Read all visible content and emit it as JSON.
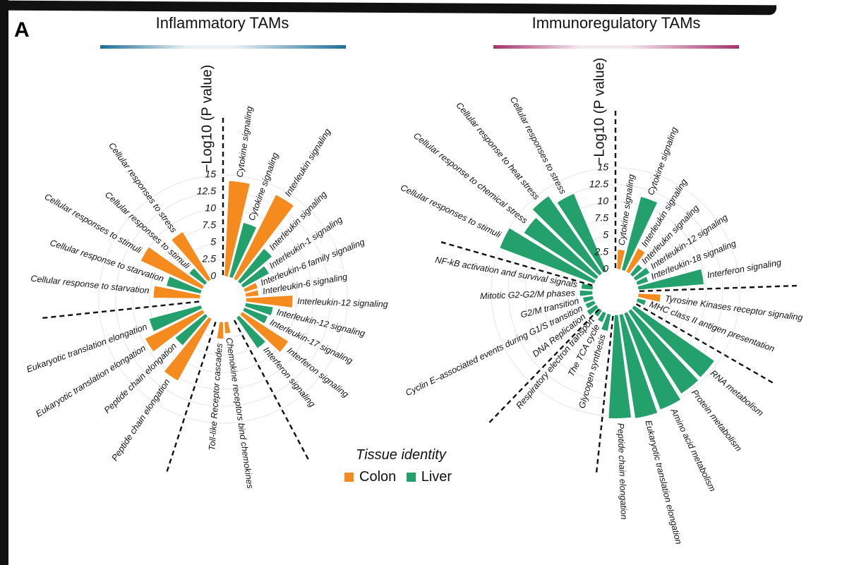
{
  "figure": {
    "panel_letter": "A",
    "colors": {
      "Colon": "#f58a1f",
      "Liver": "#23a06c",
      "left_bar": "#1f6e96",
      "right_bar": "#a5326b",
      "grid": "#e6e6e6"
    }
  },
  "legend": {
    "title": "Tissue identity",
    "items": [
      {
        "name": "Colon",
        "color": "#f58a1f"
      },
      {
        "name": "Liver",
        "color": "#23a06c"
      }
    ]
  },
  "chart_data": [
    {
      "type": "bar",
      "subtype": "circular",
      "title": "Inflammatory TAMs",
      "ylabel": "−Log10 (P value)",
      "ylim": [
        0,
        15
      ],
      "yticks": [
        "0",
        "2.5",
        "5",
        "7.5",
        "10",
        "12.5",
        "15"
      ],
      "grid": true,
      "series": [
        {
          "name": "Colon",
          "color": "#f58a1f"
        },
        {
          "name": "Liver",
          "color": "#23a06c"
        }
      ],
      "bars": [
        {
          "label": "Cytokine signaling",
          "tissue": "Colon",
          "value": 14.2,
          "angle": 8
        },
        {
          "label": "Cytokine signaling",
          "tissue": "Liver",
          "value": 8.4,
          "angle": 20
        },
        {
          "label": "Interleukin signaling",
          "tissue": "Colon",
          "value": 14.0,
          "angle": 32
        },
        {
          "label": "Interleukin signaling",
          "tissue": "Liver",
          "value": 6.3,
          "angle": 44
        },
        {
          "label": "Interleukin-1 signaling",
          "tissue": "Liver",
          "value": 4.5,
          "angle": 56
        },
        {
          "label": "Interleukin-6 family signaling",
          "tissue": "Colon",
          "value": 2.1,
          "angle": 68
        },
        {
          "label": "Interleukin-6 signaling",
          "tissue": "Colon",
          "value": 2.0,
          "angle": 80
        },
        {
          "label": "Interleukin-12 signaling",
          "tissue": "Colon",
          "value": 7.0,
          "angle": 92
        },
        {
          "label": "Interleukin-12 signaling",
          "tissue": "Liver",
          "value": 4.2,
          "angle": 104
        },
        {
          "label": "Interleukin-17 signaling",
          "tissue": "Liver",
          "value": 3.8,
          "angle": 116
        },
        {
          "label": "Interferon signaling",
          "tissue": "Colon",
          "value": 8.2,
          "angle": 128
        },
        {
          "label": "Interferon signaling",
          "tissue": "Liver",
          "value": 5.6,
          "angle": 140
        },
        {
          "label": "Chemokine receptors bind chemokines",
          "tissue": "Colon",
          "value": 1.8,
          "angle": 172
        },
        {
          "label": "Toll-like Receptor cascades",
          "tissue": "Colon",
          "value": 2.6,
          "angle": 184
        },
        {
          "label": "Peptide chain elongation",
          "tissue": "Colon",
          "value": 10.5,
          "angle": 214
        },
        {
          "label": "Peptide chain elongation",
          "tissue": "Liver",
          "value": 5.8,
          "angle": 226
        },
        {
          "label": "Eukaryotic translation elongation",
          "tissue": "Colon",
          "value": 9.6,
          "angle": 238
        },
        {
          "label": "Eukaryotic translation elongation",
          "tissue": "Liver",
          "value": 8.0,
          "angle": 250
        },
        {
          "label": "Cellular response to starvation",
          "tissue": "Colon",
          "value": 7.0,
          "angle": 276
        },
        {
          "label": "Cellular response to starvation",
          "tissue": "Liver",
          "value": 5.3,
          "angle": 288
        },
        {
          "label": "Cellular responses to stimuli",
          "tissue": "Colon",
          "value": 10.1,
          "angle": 300
        },
        {
          "label": "Cellular responses to stimuli",
          "tissue": "Liver",
          "value": 3.0,
          "angle": 312
        },
        {
          "label": "Cellular responses to stress",
          "tissue": "Colon",
          "value": 8.3,
          "angle": 324
        }
      ],
      "divider_angles": [
        0,
        152,
        198,
        264
      ]
    },
    {
      "type": "bar",
      "subtype": "circular",
      "title": "Immunoregulatory TAMs",
      "ylabel": "−Log10 (P value)",
      "ylim": [
        0,
        15
      ],
      "yticks": [
        "0",
        "2.5",
        "5",
        "7.5",
        "10",
        "12.5",
        "15"
      ],
      "grid": true,
      "series": [
        {
          "name": "Colon",
          "color": "#f58a1f"
        },
        {
          "name": "Liver",
          "color": "#23a06c"
        }
      ],
      "bars": [
        {
          "label": "Cytokine signaling",
          "tissue": "Colon",
          "value": 3.0,
          "angle": 8
        },
        {
          "label": "Cytokine signaling",
          "tissue": "Liver",
          "value": 11.3,
          "angle": 20
        },
        {
          "label": "Interleukin signaling",
          "tissue": "Colon",
          "value": 4.0,
          "angle": 32
        },
        {
          "label": "Interleukin signaling",
          "tissue": "Liver",
          "value": 2.0,
          "angle": 44
        },
        {
          "label": "Interleukin-12 signaling",
          "tissue": "Liver",
          "value": 2.5,
          "angle": 56
        },
        {
          "label": "Interleukin-18 signaling",
          "tissue": "Liver",
          "value": 1.8,
          "angle": 68
        },
        {
          "label": "Interferon signaling",
          "tissue": "Liver",
          "value": 9.8,
          "angle": 80
        },
        {
          "label": "Tyrosine Kinases receptor signaling",
          "tissue": "Colon",
          "value": 3.4,
          "angle": 98
        },
        {
          "label": "MHC class II antigen presentation",
          "tissue": "Liver",
          "value": 1.4,
          "angle": 110
        },
        {
          "label": "RNA metabolism",
          "tissue": "Liver",
          "value": 14.5,
          "angle": 130
        },
        {
          "label": "Protein metabolism",
          "tissue": "Liver",
          "value": 14.6,
          "angle": 142
        },
        {
          "label": "Amino acid metabolism",
          "tissue": "Liver",
          "value": 15.3,
          "angle": 154
        },
        {
          "label": "Eukaryotic translation elongation",
          "tissue": "Liver",
          "value": 15.6,
          "angle": 166
        },
        {
          "label": "Peptide chain elongation",
          "tissue": "Liver",
          "value": 15.4,
          "angle": 178
        },
        {
          "label": "Glycogen synthesis",
          "tissue": "Liver",
          "value": 2.6,
          "angle": 196
        },
        {
          "label": "The TCA cycle",
          "tissue": "Liver",
          "value": 1.6,
          "angle": 208
        },
        {
          "label": "Respiratory electron transport",
          "tissue": "Liver",
          "value": 1.2,
          "angle": 220
        },
        {
          "label": "DNA Replication",
          "tissue": "Liver",
          "value": 1.8,
          "angle": 232
        },
        {
          "label": "Cyclin E–associated events during G1/S transition",
          "tissue": "Liver",
          "value": 1.5,
          "angle": 244
        },
        {
          "label": "G2/M transition",
          "tissue": "Liver",
          "value": 1.6,
          "angle": 256
        },
        {
          "label": "Mitotic G2-G2/M phases",
          "tissue": "Liver",
          "value": 2.0,
          "angle": 268
        },
        {
          "label": "NF-kB activation and survival signals",
          "tissue": "Liver",
          "value": 1.8,
          "angle": 280
        },
        {
          "label": "Cellular responses to stimuli",
          "tissue": "Liver",
          "value": 15.0,
          "angle": 296
        },
        {
          "label": "Cellular response to chemical stress",
          "tissue": "Liver",
          "value": 12.8,
          "angle": 308
        },
        {
          "label": "Cellular response to heat stress",
          "tissue": "Liver",
          "value": 14.0,
          "angle": 320
        },
        {
          "label": "Cellular responses to stress",
          "tissue": "Liver",
          "value": 12.5,
          "angle": 332
        }
      ],
      "divider_angles": [
        0,
        88,
        120,
        186,
        224,
        286
      ]
    }
  ]
}
